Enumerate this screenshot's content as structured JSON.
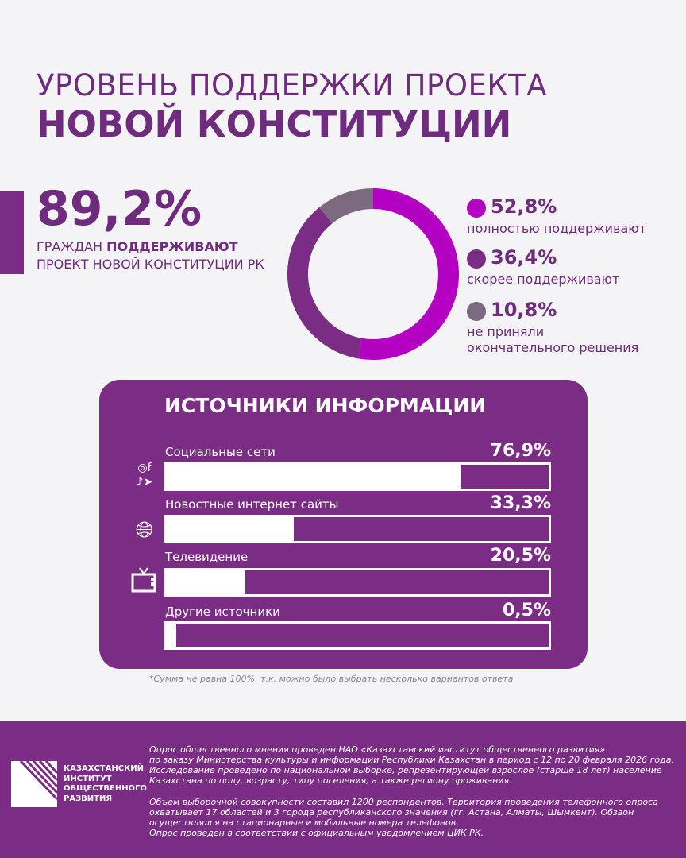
{
  "header": {
    "title_line1": "УРОВЕНЬ ПОДДЕРЖКИ ПРОЕКТА",
    "title_line2": "НОВОЙ КОНСТИТУЦИИ"
  },
  "headline": {
    "value": "89,2%",
    "line1_prefix": "ГРАЖДАН ",
    "line1_bold": "ПОДДЕРЖИВАЮТ",
    "line2": "ПРОЕКТ НОВОЙ КОНСТИТУЦИИ РК"
  },
  "chart_data": [
    {
      "type": "pie",
      "variant": "donut",
      "start": "top",
      "direction": "clockwise",
      "slices": [
        {
          "value": 52.8,
          "label": "52,8%",
          "name": "полностью поддерживают",
          "color": "#b300c2"
        },
        {
          "value": 36.4,
          "label": "36,4%",
          "name": "скорее поддерживают",
          "color": "#7b2d86"
        },
        {
          "value": 10.8,
          "label": "10,8%",
          "name": "не приняли окончательного решения",
          "name_line1": "не приняли",
          "name_line2": "окончательного решения",
          "color": "#7c6a80"
        }
      ]
    },
    {
      "type": "bar",
      "orientation": "horizontal",
      "title": "ИСТОЧНИКИ ИНФОРМАЦИИ",
      "xlim": [
        0,
        100
      ],
      "categories": [
        "Социальные сети",
        "Новостные интернет сайты",
        "Телевидение",
        "Другие источники"
      ],
      "values": [
        76.9,
        33.3,
        20.5,
        0.5
      ],
      "labels": [
        "76,9%",
        "33,3%",
        "20,5%",
        "0,5%"
      ],
      "icons": [
        "social-media-icons",
        "globe-cursor-icon",
        "tv-icon",
        ""
      ]
    }
  ],
  "note": "*Сумма не равна 100%, т.к. можно было выбрать несколько вариантов ответа",
  "footer": {
    "logo_lines": [
      "КАЗАХСТАНСКИЙ",
      "ИНСТИТУТ",
      "ОБЩЕСТВЕННОГО",
      "РАЗВИТИЯ"
    ],
    "text": [
      "Опрос общественного мнения проведен НАО «Казахстанский институт общественного развития»",
      "по заказу Министерства культуры и информации Республики Казахстан в период с 12 по 20 февраля 2026 года.",
      "Исследование проведено по национальной выборке, репрезентирующей взрослое (старше 18 лет) население",
      "Казахстана по полу, возрасту, типу поселения, а также региону проживания.",
      "Объем выборочной совокупности составил 1200 респондентов. Территория проведения телефонного опроса",
      "охватывает 17 областей и 3 города республиканского значения (гг. Астана, Алматы, Шымкент). Обзвон",
      "осуществлялся на стационарные и мобильные номера телефонов.",
      "Опрос проведен в соответствии с официальным уведомлением ЦИК РК."
    ]
  }
}
